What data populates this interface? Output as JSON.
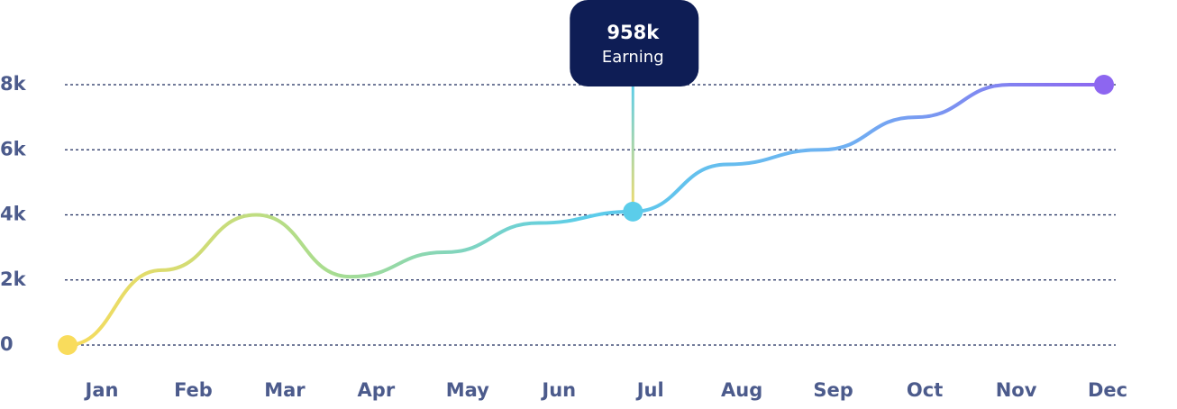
{
  "chart_data": {
    "type": "line",
    "categories": [
      "Jan",
      "Feb",
      "Mar",
      "Apr",
      "May",
      "Jun",
      "Jul",
      "Aug",
      "Sep",
      "Oct",
      "Nov",
      "Dec"
    ],
    "values": [
      0,
      2300,
      4000,
      2100,
      2850,
      3750,
      4100,
      5550,
      6000,
      7000,
      8000,
      8000
    ],
    "ylim": [
      0,
      8000
    ],
    "yticks": [
      0,
      {
        "value": 2000,
        "label": "2k"
      },
      {
        "value": 4000,
        "label": "4k"
      },
      {
        "value": 6000,
        "label": "6k"
      },
      {
        "value": 8000,
        "label": "8k"
      }
    ],
    "grid": true,
    "colors": [
      "#f9dc5c",
      "#a9dd8f",
      "#5bcdea",
      "#6fb0f2",
      "#8d66f0"
    ],
    "tooltip": {
      "category": "Jul",
      "title": "958k",
      "label": "Earning"
    }
  }
}
